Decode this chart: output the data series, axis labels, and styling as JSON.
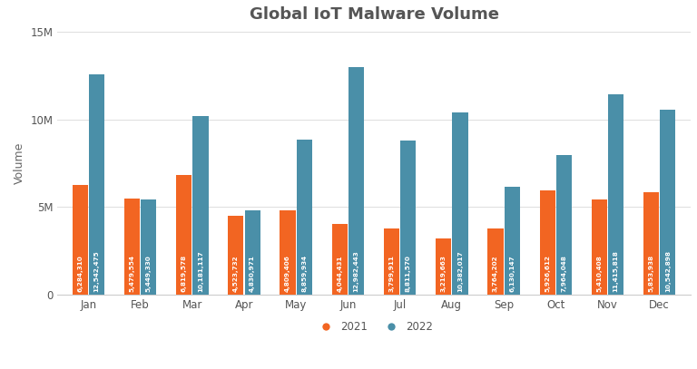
{
  "title": "Global IoT Malware Volume",
  "months": [
    "Jan",
    "Feb",
    "Mar",
    "Apr",
    "May",
    "Jun",
    "Jul",
    "Aug",
    "Sep",
    "Oct",
    "Nov",
    "Dec"
  ],
  "values_2021": [
    6284310,
    5479554,
    6819578,
    4523732,
    4809406,
    4044431,
    3799911,
    3219663,
    3764202,
    5926612,
    5410408,
    5853938
  ],
  "values_2022": [
    12542475,
    5449330,
    10181117,
    4830971,
    8859934,
    12982443,
    8811570,
    10382017,
    6130147,
    7964048,
    11415818,
    10542898
  ],
  "color_2021": "#f26522",
  "color_2022": "#4a8fa8",
  "ylabel": "Volume",
  "ylim": [
    0,
    15000000
  ],
  "yticks": [
    0,
    5000000,
    10000000,
    15000000
  ],
  "ytick_labels": [
    "0",
    "5M",
    "10M",
    "15M"
  ],
  "background_color": "#ffffff",
  "grid_color": "#dddddd",
  "label_2021": "2021",
  "label_2022": "2022",
  "bar_label_fontsize": 5.2,
  "title_fontsize": 13,
  "bar_width": 0.3
}
